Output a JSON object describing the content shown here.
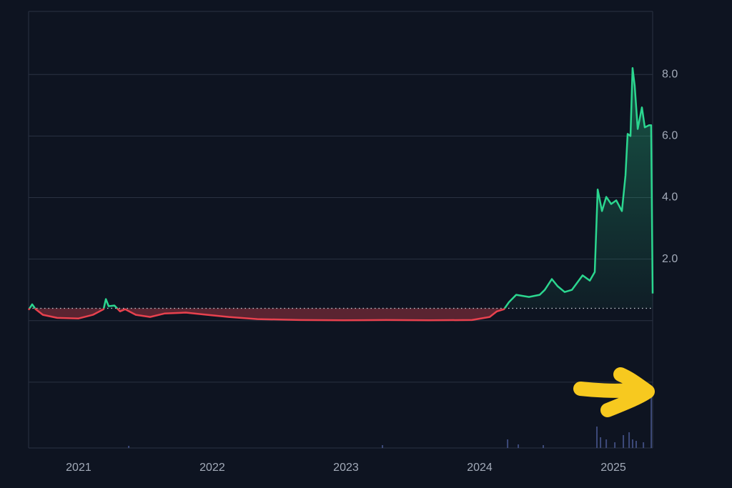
{
  "chart_data": {
    "type": "line",
    "x": [
      2020.626,
      2020.653,
      2020.679,
      2020.733,
      2020.84,
      2021.0,
      2021.107,
      2021.187,
      2021.204,
      2021.225,
      2021.268,
      2021.31,
      2021.348,
      2021.428,
      2021.535,
      2021.642,
      2021.802,
      2021.963,
      2022.123,
      2022.337,
      2022.658,
      2022.979,
      2023.3,
      2023.621,
      2023.942,
      2024.075,
      2024.129,
      2024.182,
      2024.219,
      2024.273,
      2024.369,
      2024.449,
      2024.487,
      2024.54,
      2024.583,
      2024.636,
      2024.69,
      2024.77,
      2024.824,
      2024.861,
      2024.883,
      2024.915,
      2024.947,
      2024.984,
      2025.022,
      2025.064,
      2025.091,
      2025.107,
      2025.128,
      2025.144,
      2025.16,
      2025.182,
      2025.214,
      2025.235,
      2025.267,
      2025.283,
      2025.294
    ],
    "values": [
      0.35,
      0.53,
      0.37,
      0.19,
      0.09,
      0.07,
      0.19,
      0.37,
      0.7,
      0.47,
      0.49,
      0.3,
      0.37,
      0.19,
      0.12,
      0.23,
      0.26,
      0.19,
      0.12,
      0.05,
      0.02,
      0.01,
      0.02,
      0.01,
      0.02,
      0.12,
      0.3,
      0.37,
      0.6,
      0.84,
      0.77,
      0.84,
      1.0,
      1.35,
      1.12,
      0.93,
      1.0,
      1.47,
      1.3,
      1.58,
      4.26,
      3.56,
      4.02,
      3.79,
      3.91,
      3.56,
      4.72,
      6.07,
      6.0,
      8.21,
      7.63,
      6.23,
      6.93,
      6.28,
      6.35,
      6.35,
      0.88
    ],
    "baseline": 0.4,
    "color_above": "#2bd68f",
    "color_below": "#e8414e",
    "xlim": [
      2020.626,
      2025.294
    ],
    "xticks": [
      2021,
      2022,
      2023,
      2024,
      2025
    ],
    "ylim": [
      -4.14,
      10.05
    ],
    "yticks": [
      {
        "value": -2,
        "label": null
      },
      {
        "value": 0,
        "label": null
      },
      {
        "value": 2,
        "label": "2.0"
      },
      {
        "value": 4,
        "label": "4.0"
      },
      {
        "value": 6,
        "label": "6.0"
      },
      {
        "value": 8,
        "label": "8.0"
      }
    ],
    "grid": true,
    "volume": {
      "color": "#3d4a7a",
      "x": [
        2021.375,
        2023.273,
        2024.209,
        2024.289,
        2024.476,
        2024.877,
        2024.904,
        2024.947,
        2025.011,
        2025.075,
        2025.118,
        2025.144,
        2025.171,
        2025.225,
        2025.284
      ],
      "values": [
        3,
        4,
        12,
        5,
        4,
        30,
        15,
        12,
        8,
        18,
        22,
        12,
        10,
        8,
        80
      ],
      "ylim": [
        0,
        100
      ]
    }
  }
}
